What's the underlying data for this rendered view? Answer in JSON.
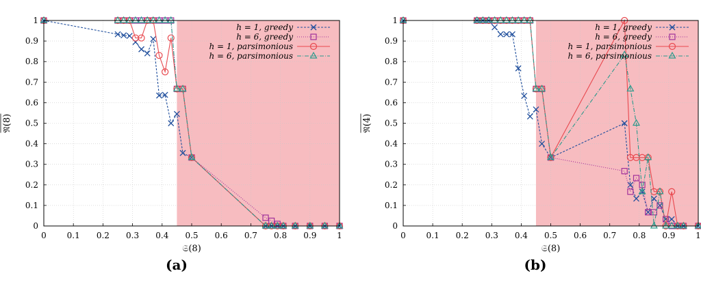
{
  "chart_data": [
    {
      "type": "line",
      "panel_label": "(a)",
      "xlabel": "𝔖(8)",
      "ylabel": "𝔑(8)",
      "xlim": [
        0,
        1
      ],
      "ylim": [
        0,
        1
      ],
      "xticks": [
        "0",
        "0.1",
        "0.2",
        "0.3",
        "0.4",
        "0.5",
        "0.6",
        "0.7",
        "0.8",
        "0.9",
        "1"
      ],
      "yticks": [
        "0",
        "0.1",
        "0.2",
        "0.3",
        "0.4",
        "0.5",
        "0.6",
        "0.7",
        "0.8",
        "0.9",
        "1"
      ],
      "grid": true,
      "legend_position": "top-right",
      "shaded_region": {
        "x_from": 0.45,
        "x_to": 1.0,
        "color": "#f7bcc0"
      },
      "series": [
        {
          "name": "h = 1, greedy",
          "color": "#1f4e9c",
          "marker": "x",
          "dash": "3,2",
          "x": [
            0,
            0.25,
            0.27,
            0.29,
            0.31,
            0.33,
            0.35,
            0.37,
            0.39,
            0.41,
            0.43,
            0.45,
            0.47,
            0.5,
            0.75,
            0.77,
            0.79,
            0.81,
            0.85,
            0.9,
            0.95,
            1.0
          ],
          "y": [
            1,
            0.933,
            0.928,
            0.925,
            0.895,
            0.86,
            0.84,
            0.91,
            0.635,
            0.638,
            0.5,
            0.545,
            0.355,
            0.333,
            0,
            0,
            0,
            0,
            0,
            0,
            0,
            0
          ]
        },
        {
          "name": "h = 6, greedy",
          "color": "#a0309a",
          "marker": "square",
          "dash": "1,2",
          "x": [
            0,
            0.25,
            0.27,
            0.29,
            0.31,
            0.33,
            0.35,
            0.37,
            0.39,
            0.41,
            0.43,
            0.45,
            0.47,
            0.5,
            0.75,
            0.77,
            0.79,
            0.81,
            0.85,
            0.9,
            0.95,
            1.0
          ],
          "y": [
            1,
            1,
            1,
            1,
            1,
            1,
            1,
            1,
            1,
            1,
            1,
            0.667,
            0.667,
            0.333,
            0.04,
            0.025,
            0.01,
            0,
            0,
            0,
            0,
            0
          ]
        },
        {
          "name": "h = 1, parsimonious",
          "color": "#e8484e",
          "marker": "circle",
          "dash": "",
          "x": [
            0,
            0.25,
            0.27,
            0.29,
            0.31,
            0.33,
            0.35,
            0.37,
            0.39,
            0.41,
            0.43,
            0.45,
            0.47,
            0.5,
            0.75,
            0.77,
            0.79,
            0.81,
            0.85,
            0.9,
            0.95,
            1.0
          ],
          "y": [
            1,
            1,
            1,
            1,
            0.915,
            0.915,
            1,
            1,
            0.83,
            0.75,
            0.915,
            0.667,
            0.667,
            0.333,
            0,
            0,
            0,
            0,
            0,
            0,
            0,
            0
          ]
        },
        {
          "name": "h = 6, parsimonious",
          "color": "#2a9a8c",
          "marker": "triangle",
          "dash": "6,2,1,2",
          "x": [
            0,
            0.25,
            0.27,
            0.29,
            0.31,
            0.33,
            0.35,
            0.37,
            0.39,
            0.41,
            0.43,
            0.45,
            0.47,
            0.5,
            0.75,
            0.77,
            0.79,
            0.81,
            0.85,
            0.9,
            0.95,
            1.0
          ],
          "y": [
            1,
            1,
            1,
            1,
            1,
            1,
            1,
            1,
            1,
            1,
            1,
            0.667,
            0.667,
            0.333,
            0,
            0,
            0,
            0,
            0,
            0,
            0,
            0
          ]
        }
      ]
    },
    {
      "type": "line",
      "panel_label": "(b)",
      "xlabel": "𝔖(8)",
      "ylabel": "𝔑(4)",
      "xlim": [
        0,
        1
      ],
      "ylim": [
        0,
        1
      ],
      "xticks": [
        "0",
        "0.1",
        "0.2",
        "0.3",
        "0.4",
        "0.5",
        "0.6",
        "0.7",
        "0.8",
        "0.9",
        "1"
      ],
      "yticks": [
        "0",
        "0.1",
        "0.2",
        "0.3",
        "0.4",
        "0.5",
        "0.6",
        "0.7",
        "0.8",
        "0.9",
        "1"
      ],
      "grid": true,
      "legend_position": "top-right",
      "shaded_region": {
        "x_from": 0.45,
        "x_to": 1.0,
        "color": "#f7bcc0"
      },
      "series": [
        {
          "name": "h = 1, greedy",
          "color": "#1f4e9c",
          "marker": "x",
          "dash": "3,2",
          "x": [
            0,
            0.25,
            0.27,
            0.29,
            0.31,
            0.33,
            0.35,
            0.37,
            0.39,
            0.41,
            0.43,
            0.45,
            0.47,
            0.5,
            0.75,
            0.77,
            0.79,
            0.81,
            0.83,
            0.85,
            0.87,
            0.89,
            0.91,
            0.93,
            0.95,
            1.0
          ],
          "y": [
            1,
            1,
            1,
            1,
            0.967,
            0.933,
            0.933,
            0.933,
            0.767,
            0.633,
            0.533,
            0.567,
            0.4,
            0.333,
            0.5,
            0.2,
            0.133,
            0.167,
            0.067,
            0.133,
            0.1,
            0.033,
            0.033,
            0,
            0,
            0
          ]
        },
        {
          "name": "h = 6, greedy",
          "color": "#a0309a",
          "marker": "square",
          "dash": "1,2",
          "x": [
            0,
            0.25,
            0.27,
            0.29,
            0.31,
            0.33,
            0.35,
            0.37,
            0.39,
            0.41,
            0.43,
            0.45,
            0.47,
            0.5,
            0.75,
            0.77,
            0.79,
            0.81,
            0.83,
            0.85,
            0.87,
            0.89,
            0.91,
            0.93,
            0.95,
            1.0
          ],
          "y": [
            1,
            1,
            1,
            1,
            1,
            1,
            1,
            1,
            1,
            1,
            1,
            0.667,
            0.667,
            0.333,
            0.267,
            0.167,
            0.233,
            0.2,
            0.067,
            0.067,
            0.1,
            0.033,
            0,
            0,
            0,
            0
          ]
        },
        {
          "name": "h = 1, parsimonious",
          "color": "#e8484e",
          "marker": "circle",
          "dash": "",
          "x": [
            0,
            0.25,
            0.27,
            0.29,
            0.31,
            0.33,
            0.35,
            0.37,
            0.39,
            0.41,
            0.43,
            0.45,
            0.47,
            0.5,
            0.75,
            0.77,
            0.79,
            0.81,
            0.83,
            0.85,
            0.87,
            0.89,
            0.91,
            0.93,
            0.95,
            1.0
          ],
          "y": [
            1,
            1,
            1,
            1,
            1,
            1,
            1,
            1,
            1,
            1,
            1,
            0.667,
            0.667,
            0.333,
            1.0,
            0.333,
            0.333,
            0.333,
            0.333,
            0.167,
            0.167,
            0,
            0.167,
            0,
            0,
            0
          ]
        },
        {
          "name": "h = 6, parsimonious",
          "color": "#2a9a8c",
          "marker": "triangle",
          "dash": "6,2,1,2",
          "x": [
            0,
            0.25,
            0.27,
            0.29,
            0.31,
            0.33,
            0.35,
            0.37,
            0.39,
            0.41,
            0.43,
            0.45,
            0.47,
            0.5,
            0.75,
            0.77,
            0.79,
            0.81,
            0.83,
            0.85,
            0.87,
            0.89,
            0.91,
            0.93,
            0.95,
            1.0
          ],
          "y": [
            1,
            1,
            1,
            1,
            1,
            1,
            1,
            1,
            1,
            1,
            1,
            0.667,
            0.667,
            0.333,
            0.833,
            0.667,
            0.5,
            0.167,
            0.333,
            0,
            0.167,
            0,
            0,
            0,
            0,
            0
          ]
        }
      ]
    }
  ]
}
